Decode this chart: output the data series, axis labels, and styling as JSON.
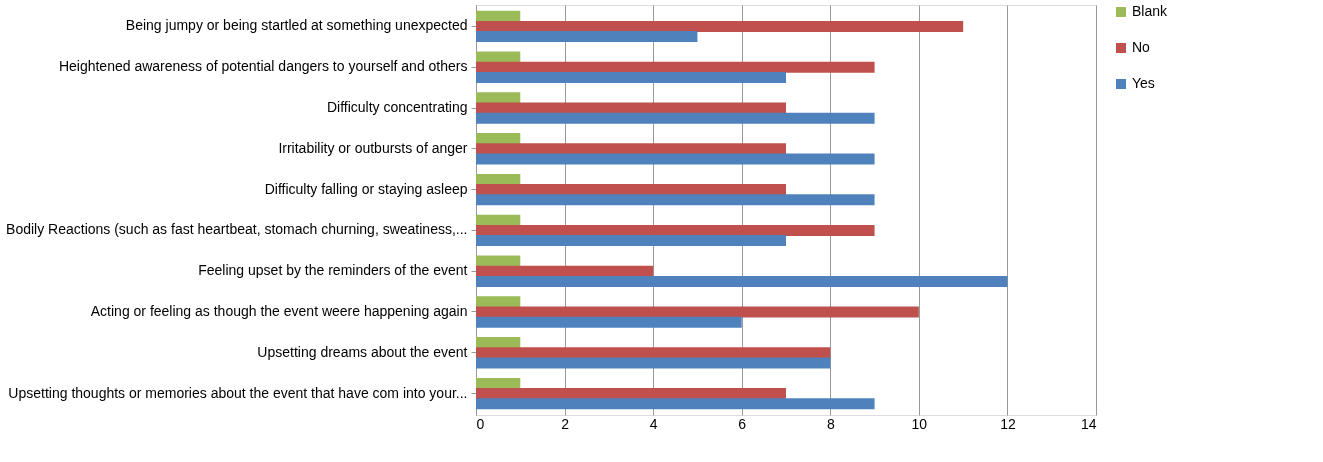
{
  "chart_data": {
    "type": "bar",
    "orientation": "horizontal",
    "categories": [
      "Being jumpy or being startled at something unexpected",
      "Heightened awareness of potential dangers to yourself and others",
      "Difficulty concentrating",
      "Irritability or outbursts of anger",
      "Difficulty falling or staying asleep",
      "Bodily Reactions (such as fast heartbeat, stomach churning, sweatiness,...",
      "Feeling upset by the reminders of the event",
      "Acting or feeling as though the event weere happening again",
      "Upsetting dreams about the event",
      "Upsetting thoughts or memories about the event that have com into your..."
    ],
    "series": [
      {
        "name": "Blank",
        "color": "#9bbb59",
        "values": [
          1,
          1,
          1,
          1,
          1,
          1,
          1,
          1,
          1,
          1
        ]
      },
      {
        "name": "No",
        "color": "#c0504d",
        "values": [
          11,
          9,
          7,
          7,
          7,
          9,
          4,
          10,
          8,
          7
        ]
      },
      {
        "name": "Yes",
        "color": "#4f81bd",
        "values": [
          5,
          7,
          9,
          9,
          9,
          7,
          12,
          6,
          8,
          9
        ]
      }
    ],
    "xlim": [
      0,
      14
    ],
    "xticks": [
      0,
      2,
      4,
      6,
      8,
      10,
      12,
      14
    ],
    "grid": "x",
    "legend": "right"
  }
}
